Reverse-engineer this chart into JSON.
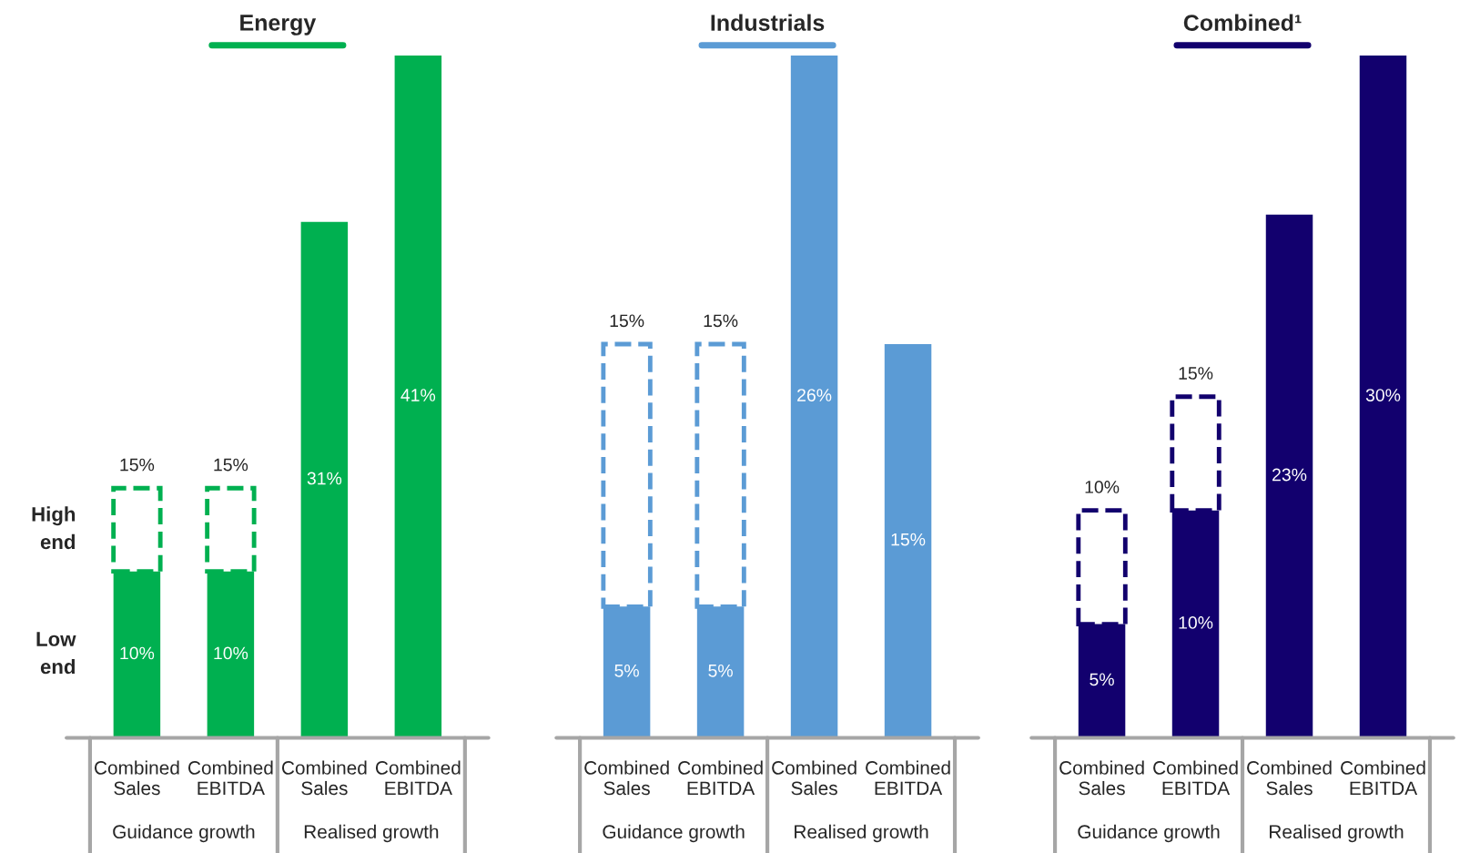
{
  "chart_data": [
    {
      "type": "bar",
      "title": "Energy",
      "stacked": true,
      "legend": false,
      "grid": false,
      "categories": [
        "Combined\nSales",
        "Combined\nEBITDA",
        "Combined\nSales",
        "Combined\nEBITDA"
      ],
      "series": [
        {
          "name": "Low\nend",
          "color": "#00b050",
          "values": [
            10,
            10,
            31,
            41
          ],
          "value_labels": [
            "10%",
            "10%",
            "31%",
            "41%"
          ]
        },
        {
          "name": "High\nend",
          "color": "#00b050",
          "line_style": "dashed",
          "values": [
            5,
            5,
            null,
            null
          ]
        }
      ],
      "totals": [
        "15%",
        "15%",
        null,
        null
      ],
      "annotations": [
        "Guidance growth",
        "Realised growth"
      ]
    },
    {
      "type": "bar",
      "title": "Industrials",
      "stacked": true,
      "legend": false,
      "grid": false,
      "categories": [
        "Combined\nSales",
        "Combined\nEBITDA",
        "Combined\nSales",
        "Combined\nEBITDA"
      ],
      "series": [
        {
          "color": "#5b9bd5",
          "values": [
            5,
            5,
            26,
            15
          ],
          "value_labels": [
            "5%",
            "5%",
            "26%",
            "15%"
          ]
        },
        {
          "color": "#5b9bd5",
          "line_style": "dashed",
          "values": [
            10,
            10,
            null,
            null
          ]
        }
      ],
      "totals": [
        "15%",
        "15%",
        null,
        null
      ],
      "annotations": [
        "Guidance growth",
        "Realised growth"
      ]
    },
    {
      "type": "bar",
      "title": "Combined¹",
      "stacked": true,
      "legend": false,
      "grid": false,
      "categories": [
        "Combined\nSales",
        "Combined\nEBITDA",
        "Combined\nSales",
        "Combined\nEBITDA"
      ],
      "series": [
        {
          "color": "#12006e",
          "values": [
            5,
            10,
            23,
            30
          ],
          "value_labels": [
            "5%",
            "10%",
            "23%",
            "30%"
          ]
        },
        {
          "color": "#12006e",
          "line_style": "dashed",
          "values": [
            5,
            5,
            null,
            null
          ]
        }
      ],
      "totals": [
        "10%",
        "15%",
        null,
        null
      ],
      "annotations": [
        "Guidance growth",
        "Realised growth"
      ]
    }
  ]
}
